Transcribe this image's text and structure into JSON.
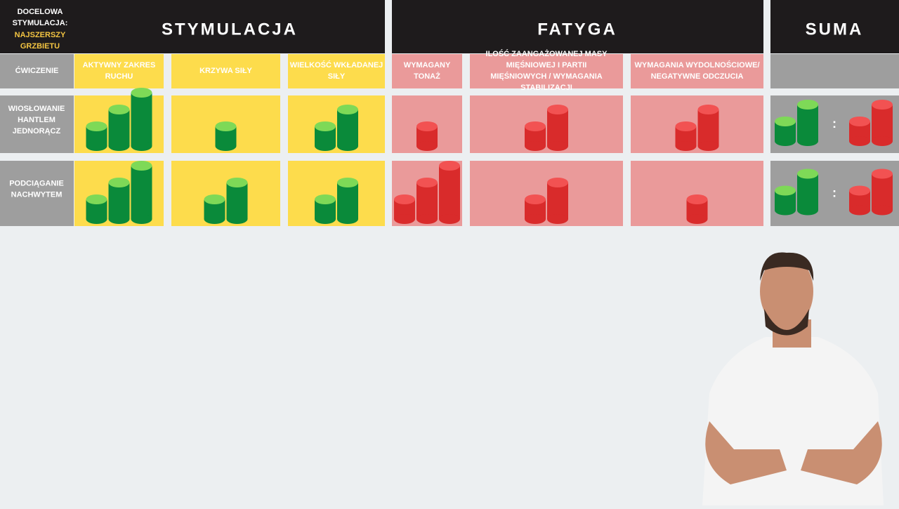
{
  "header": {
    "target_label": "DOCELOWA STYMULACJA:",
    "target_muscle": "NAJSZERSZY GRZBIETU",
    "groups": [
      "STYMULACJA",
      "FATYGA",
      "SUMA"
    ]
  },
  "table": {
    "columns": [
      "ĆWICZENIE",
      "AKTYWNY ZAKRES RUCHU",
      "KRZYWA SIŁY",
      "WIELKOŚĆ WKŁADANEJ SIŁY",
      "WYMAGANY TONAŻ",
      "ILOŚĆ ZAANGAŻOWANEJ MASY MIĘŚNIOWEJ I PARTII MIĘŚNIOWYCH / WYMAGANIA STABILIZACJI",
      "WYMAGANIA WYDOLNOŚCIOWE/ NEGATYWNE ODCZUCIA"
    ],
    "separator": ":",
    "rows": [
      {
        "name": "WIOSŁOWANIE HANTLEM JEDNORĄCZ",
        "stimulus": [
          3,
          1,
          2
        ],
        "fatigue": [
          1,
          2,
          2
        ],
        "sum": [
          2,
          2
        ]
      },
      {
        "name": "PODCIĄGANIE NACHWYTEM",
        "stimulus": [
          3,
          2,
          2
        ],
        "fatigue": [
          3,
          2,
          1
        ],
        "sum": [
          2,
          2
        ]
      }
    ]
  }
}
